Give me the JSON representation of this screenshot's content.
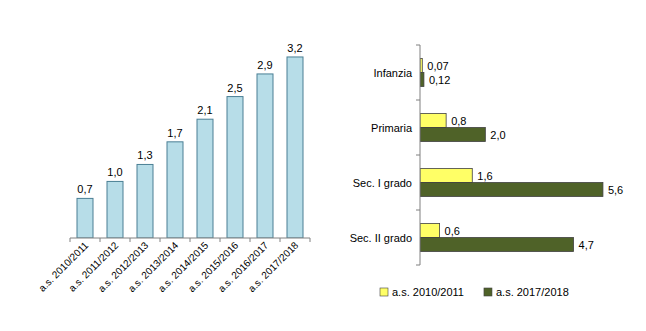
{
  "chart_data": [
    {
      "type": "bar",
      "categories": [
        "a.s. 2010/2011",
        "a.s. 2011/2012",
        "a.s. 2012/2013",
        "a.s. 2013/2014",
        "a.s. 2014/2015",
        "a.s. 2015/2016",
        "a.s. 2016/2017",
        "a.s. 2017/2018"
      ],
      "values": [
        0.7,
        1.0,
        1.3,
        1.7,
        2.1,
        2.5,
        2.9,
        3.2
      ],
      "value_labels": [
        "0,7",
        "1,0",
        "1,3",
        "1,7",
        "2,1",
        "2,5",
        "2,9",
        "3,2"
      ],
      "color": "#b7dde8",
      "ylim": [
        0,
        3.5
      ],
      "tick_labels": "x",
      "data_labels": true
    },
    {
      "type": "bar",
      "orientation": "horizontal",
      "categories": [
        "Infanzia",
        "Primaria",
        "Sec. I grado",
        "Sec. II grado"
      ],
      "series": [
        {
          "name": "a.s. 2010/2011",
          "color": "#ffff66",
          "values": [
            0.07,
            0.8,
            1.6,
            0.6
          ],
          "value_labels": [
            "0,07",
            "0,8",
            "1,6",
            "0,6"
          ]
        },
        {
          "name": "a.s. 2017/2018",
          "color": "#4f6228",
          "values": [
            0.12,
            2.0,
            5.6,
            4.7
          ],
          "value_labels": [
            "0,12",
            "2,0",
            "5,6",
            "4,7"
          ]
        }
      ],
      "xlim": [
        0,
        6
      ],
      "tick_labels": "y",
      "legend": "bottom",
      "data_labels": true
    }
  ]
}
